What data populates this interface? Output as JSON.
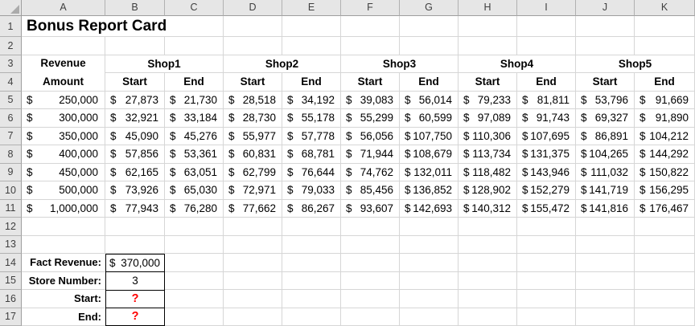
{
  "title": "Bonus Report Card",
  "sheet": {
    "column_headers": [
      "A",
      "B",
      "C",
      "D",
      "E",
      "F",
      "G",
      "H",
      "I",
      "J",
      "K"
    ],
    "row_headers": [
      "1",
      "2",
      "3",
      "4",
      "5",
      "6",
      "7",
      "8",
      "9",
      "10",
      "11",
      "12",
      "13",
      "14",
      "15",
      "16",
      "17"
    ]
  },
  "report": {
    "currency_symbol": "$",
    "revenue_header_line1": "Revenue",
    "revenue_header_line2": "Amount",
    "shops": [
      "Shop1",
      "Shop2",
      "Shop3",
      "Shop4",
      "Shop5"
    ],
    "sub_headers": [
      "Start",
      "End"
    ],
    "rows": [
      {
        "revenue": "250,000",
        "values": [
          "27,873",
          "21,730",
          "28,518",
          "34,192",
          "39,083",
          "56,014",
          "79,233",
          "81,811",
          "53,796",
          "91,669"
        ]
      },
      {
        "revenue": "300,000",
        "values": [
          "32,921",
          "33,184",
          "28,730",
          "55,178",
          "55,299",
          "60,599",
          "97,089",
          "91,743",
          "69,327",
          "91,890"
        ]
      },
      {
        "revenue": "350,000",
        "values": [
          "45,090",
          "45,276",
          "55,977",
          "57,778",
          "56,056",
          "107,750",
          "110,306",
          "107,695",
          "86,891",
          "104,212"
        ]
      },
      {
        "revenue": "400,000",
        "values": [
          "57,856",
          "53,361",
          "60,831",
          "68,781",
          "71,944",
          "108,679",
          "113,734",
          "131,375",
          "104,265",
          "144,292"
        ]
      },
      {
        "revenue": "450,000",
        "values": [
          "62,165",
          "63,051",
          "62,799",
          "76,644",
          "74,762",
          "132,011",
          "118,482",
          "143,946",
          "111,032",
          "150,822"
        ]
      },
      {
        "revenue": "500,000",
        "values": [
          "73,926",
          "65,030",
          "72,971",
          "79,033",
          "85,456",
          "136,852",
          "128,902",
          "152,279",
          "141,719",
          "156,295"
        ]
      },
      {
        "revenue": "1,000,000",
        "values": [
          "77,943",
          "76,280",
          "77,662",
          "86,267",
          "93,607",
          "142,693",
          "140,312",
          "155,472",
          "141,816",
          "176,467"
        ]
      }
    ]
  },
  "summary": {
    "rows": [
      {
        "label": "Fact Revenue:",
        "value": "370,000",
        "format": "accounting"
      },
      {
        "label": "Store Number:",
        "value": "3",
        "format": "centered"
      },
      {
        "label": "Start:",
        "value": "?",
        "format": "unknown"
      },
      {
        "label": "End:",
        "value": "?",
        "format": "unknown"
      }
    ]
  },
  "colors": {
    "unknown_value": "#FF0000",
    "gridline": "#D6D6D6",
    "header_bg": "#E6E6E6",
    "border_black": "#000000"
  }
}
